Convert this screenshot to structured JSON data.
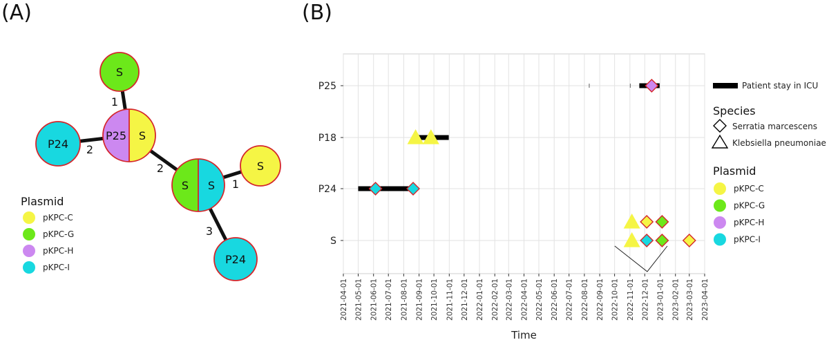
{
  "panel_a": {
    "label": "(A)",
    "colors": {
      "pKPC-C": "#f5f545",
      "pKPC-G": "#6ce81a",
      "pKPC-H": "#cc88f0",
      "pKPC-I": "#18d8e0",
      "outline": "#d4262b",
      "edge": "#111111"
    },
    "nodes": [
      {
        "id": "top",
        "halves": [
          {
            "label": "S",
            "plasmid": "pKPC-G"
          }
        ]
      },
      {
        "id": "center",
        "halves": [
          {
            "label": "P25",
            "plasmid": "pKPC-H"
          },
          {
            "label": "S",
            "plasmid": "pKPC-C"
          }
        ]
      },
      {
        "id": "left",
        "halves": [
          {
            "label": "P24",
            "plasmid": "pKPC-I"
          }
        ]
      },
      {
        "id": "mid",
        "halves": [
          {
            "label": "S",
            "plasmid": "pKPC-G"
          },
          {
            "label": "S",
            "plasmid": "pKPC-I"
          }
        ]
      },
      {
        "id": "right",
        "halves": [
          {
            "label": "S",
            "plasmid": "pKPC-C"
          }
        ]
      },
      {
        "id": "bottom",
        "halves": [
          {
            "label": "P24",
            "plasmid": "pKPC-I"
          }
        ]
      }
    ],
    "edges": [
      {
        "from": "top",
        "to": "center",
        "label": "1"
      },
      {
        "from": "left",
        "to": "center",
        "label": "2"
      },
      {
        "from": "center",
        "to": "mid",
        "label": "2"
      },
      {
        "from": "mid",
        "to": "right",
        "label": "1"
      },
      {
        "from": "mid",
        "to": "bottom",
        "label": "3"
      }
    ],
    "legend": {
      "title": "Plasmid",
      "items": [
        {
          "label": "pKPC-C",
          "plasmid": "pKPC-C"
        },
        {
          "label": "pKPC-G",
          "plasmid": "pKPC-G"
        },
        {
          "label": "pKPC-H",
          "plasmid": "pKPC-H"
        },
        {
          "label": "pKPC-I",
          "plasmid": "pKPC-I"
        }
      ]
    }
  },
  "panel_b": {
    "label": "(B)",
    "chart_data": {
      "type": "scatter",
      "xlabel": "Time",
      "ylabel": "",
      "x_ticks": [
        "2021-04-01",
        "2021-05-01",
        "2021-06-01",
        "2021-07-01",
        "2021-08-01",
        "2021-09-01",
        "2021-10-01",
        "2021-11-01",
        "2021-12-01",
        "2022-01-01",
        "2022-02-01",
        "2022-03-01",
        "2022-04-01",
        "2022-05-01",
        "2022-06-01",
        "2022-07-01",
        "2022-08-01",
        "2022-09-01",
        "2022-10-01",
        "2022-11-01",
        "2022-12-01",
        "2023-01-01",
        "2023-02-01",
        "2023-03-01",
        "2023-04-01"
      ],
      "y_categories": [
        "P25",
        "P18",
        "P24",
        "S"
      ],
      "icu_stays": [
        {
          "patient": "P25",
          "start": "2022-08-10",
          "end": "2022-08-11"
        },
        {
          "patient": "P25",
          "start": "2022-11-01",
          "end": "2022-11-02"
        },
        {
          "patient": "P25",
          "start": "2022-11-20",
          "end": "2022-12-31"
        },
        {
          "patient": "P18",
          "start": "2021-08-25",
          "end": "2021-10-31"
        },
        {
          "patient": "P24",
          "start": "2021-05-01",
          "end": "2021-08-20"
        }
      ],
      "isolates": [
        {
          "row": "P25",
          "date": "2022-12-15",
          "species": "Serratia marcescens",
          "plasmid": "pKPC-H"
        },
        {
          "row": "P18",
          "date": "2021-08-25",
          "species": "Klebsiella pneumoniae",
          "plasmid": "pKPC-C"
        },
        {
          "row": "P18",
          "date": "2021-09-25",
          "species": "Klebsiella pneumoniae",
          "plasmid": "pKPC-C"
        },
        {
          "row": "P24",
          "date": "2021-06-05",
          "species": "Serratia marcescens",
          "plasmid": "pKPC-I"
        },
        {
          "row": "P24",
          "date": "2021-08-20",
          "species": "Serratia marcescens",
          "plasmid": "pKPC-I"
        },
        {
          "row": "S",
          "offset": "upper",
          "date": "2022-11-05",
          "species": "Klebsiella pneumoniae",
          "plasmid": "pKPC-C"
        },
        {
          "row": "S",
          "offset": "upper",
          "date": "2022-12-05",
          "species": "Serratia marcescens",
          "plasmid": "pKPC-C"
        },
        {
          "row": "S",
          "offset": "upper",
          "date": "2023-01-05",
          "species": "Serratia marcescens",
          "plasmid": "pKPC-G"
        },
        {
          "row": "S",
          "offset": "lower",
          "date": "2022-11-05",
          "species": "Klebsiella pneumoniae",
          "plasmid": "pKPC-C"
        },
        {
          "row": "S",
          "offset": "lower",
          "date": "2022-12-05",
          "species": "Serratia marcescens",
          "plasmid": "pKPC-I"
        },
        {
          "row": "S",
          "offset": "lower",
          "date": "2023-01-05",
          "species": "Serratia marcescens",
          "plasmid": "pKPC-G"
        },
        {
          "row": "S",
          "offset": "lower",
          "date": "2023-03-01",
          "species": "Serratia marcescens",
          "plasmid": "pKPC-C"
        }
      ],
      "grid": true,
      "legend": {
        "stay_label": "Patient stay in ICU",
        "species_title": "Species",
        "species": [
          "Serratia marcescens",
          "Klebsiella pneumoniae"
        ],
        "plasmid_title": "Plasmid",
        "plasmids": [
          "pKPC-C",
          "pKPC-G",
          "pKPC-H",
          "pKPC-I"
        ]
      }
    }
  }
}
